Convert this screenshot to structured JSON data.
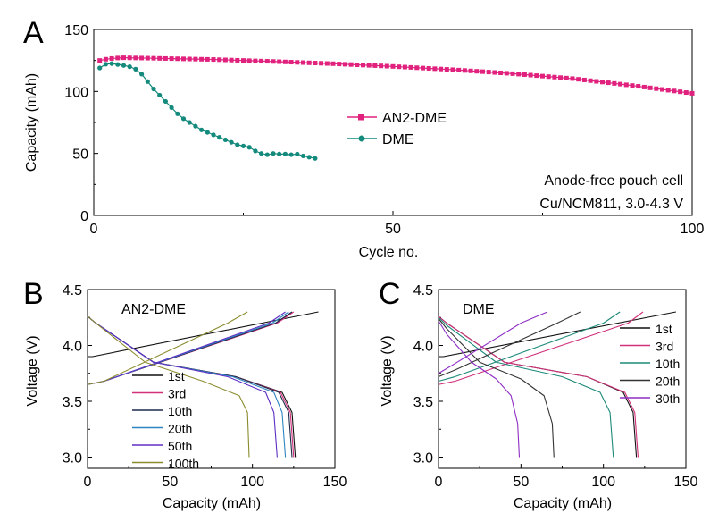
{
  "chart_data": [
    {
      "panel": "A",
      "type": "line",
      "xlabel": "Cycle no.",
      "ylabel": "Capacity (mAh)",
      "xlim": [
        0,
        100
      ],
      "ylim": [
        0,
        150
      ],
      "xticks": [
        "0",
        "50",
        "100"
      ],
      "yticks": [
        "0",
        "50",
        "100",
        "150"
      ],
      "annotations": [
        "Anode-free pouch cell",
        "Cu/NCM811, 3.0-4.3 V"
      ],
      "legend_position": "center",
      "series": [
        {
          "name": "AN2-DME",
          "color": "#e0217d",
          "marker": "square",
          "points": [
            [
              1,
              125.0
            ],
            [
              2,
              126.0
            ],
            [
              3,
              126.6
            ],
            [
              4,
              127.0
            ],
            [
              5,
              127.2
            ],
            [
              10,
              126.8
            ],
            [
              20,
              125.8
            ],
            [
              30,
              124.2
            ],
            [
              40,
              122.4
            ],
            [
              50,
              120.2
            ],
            [
              60,
              117.6
            ],
            [
              70,
              114.4
            ],
            [
              80,
              110.4
            ],
            [
              90,
              104.8
            ],
            [
              100,
              98.5
            ]
          ]
        },
        {
          "name": "DME",
          "color": "#148a7c",
          "marker": "circle",
          "points": [
            [
              1,
              119
            ],
            [
              2,
              122
            ],
            [
              3,
              122.5
            ],
            [
              4,
              121.8
            ],
            [
              5,
              121
            ],
            [
              6,
              120
            ],
            [
              7,
              118
            ],
            [
              8,
              114
            ],
            [
              9,
              108
            ],
            [
              10,
              102
            ],
            [
              11,
              97
            ],
            [
              12,
              92
            ],
            [
              13,
              87
            ],
            [
              14,
              82
            ],
            [
              15,
              78
            ],
            [
              16,
              75
            ],
            [
              17,
              72
            ],
            [
              18,
              69
            ],
            [
              19,
              67
            ],
            [
              20,
              65
            ],
            [
              21,
              63
            ],
            [
              22,
              61
            ],
            [
              23,
              59
            ],
            [
              24,
              57
            ],
            [
              25,
              56
            ],
            [
              26,
              55
            ],
            [
              27,
              52
            ],
            [
              28,
              50
            ],
            [
              29,
              49
            ],
            [
              30,
              50
            ],
            [
              31,
              49.5
            ],
            [
              32,
              49.5
            ],
            [
              33,
              49
            ],
            [
              34,
              49.5
            ],
            [
              35,
              48
            ],
            [
              36,
              47
            ],
            [
              37,
              46
            ]
          ]
        }
      ]
    },
    {
      "panel": "B",
      "type": "line",
      "title": "AN2-DME",
      "xlabel": "Capacity (mAh)",
      "ylabel": "Voltage (V)",
      "xlim": [
        0,
        150
      ],
      "ylim": [
        2.9,
        4.5
      ],
      "xticks": [
        "0",
        "50",
        "100",
        "150"
      ],
      "yticks": [
        "3.0",
        "3.5",
        "4.0",
        "4.5"
      ],
      "legend_position": "center",
      "series": [
        {
          "name": "1st",
          "color": "#111111",
          "charge": [
            [
              0,
              4.0
            ],
            [
              0.3,
              3.9
            ],
            [
              3,
              3.9
            ],
            [
              140,
              4.3
            ]
          ],
          "discharge": [
            [
              0,
              4.26
            ],
            [
              5,
              4.2
            ],
            [
              40,
              3.85
            ],
            [
              90,
              3.72
            ],
            [
              118,
              3.58
            ],
            [
              124,
              3.4
            ],
            [
              126,
              3.0
            ]
          ]
        },
        {
          "name": "3rd",
          "color": "#d1307a",
          "charge": [
            [
              0,
              3.65
            ],
            [
              10,
              3.68
            ],
            [
              115,
              4.2
            ],
            [
              125,
              4.3
            ]
          ],
          "discharge": [
            [
              0,
              4.26
            ],
            [
              5,
              4.2
            ],
            [
              40,
              3.85
            ],
            [
              90,
              3.72
            ],
            [
              117,
              3.58
            ],
            [
              123,
              3.4
            ],
            [
              125,
              3.0
            ]
          ]
        },
        {
          "name": "10th",
          "color": "#1c2a4a",
          "charge": [
            [
              0,
              3.65
            ],
            [
              10,
              3.68
            ],
            [
              114,
              4.2
            ],
            [
              124,
              4.3
            ]
          ],
          "discharge": [
            [
              0,
              4.26
            ],
            [
              5,
              4.2
            ],
            [
              40,
              3.85
            ],
            [
              90,
              3.72
            ],
            [
              116,
              3.58
            ],
            [
              122,
              3.4
            ],
            [
              124,
              3.0
            ]
          ]
        },
        {
          "name": "20th",
          "color": "#2e86c1",
          "charge": [
            [
              0,
              3.65
            ],
            [
              10,
              3.68
            ],
            [
              112,
              4.2
            ],
            [
              122,
              4.3
            ]
          ],
          "discharge": [
            [
              0,
              4.26
            ],
            [
              5,
              4.2
            ],
            [
              40,
              3.85
            ],
            [
              88,
              3.72
            ],
            [
              113,
              3.58
            ],
            [
              118,
              3.4
            ],
            [
              120,
              3.0
            ]
          ]
        },
        {
          "name": "50th",
          "color": "#5e2ec4",
          "charge": [
            [
              0,
              3.65
            ],
            [
              10,
              3.68
            ],
            [
              110,
              4.2
            ],
            [
              120,
              4.3
            ]
          ],
          "discharge": [
            [
              0,
              4.26
            ],
            [
              5,
              4.2
            ],
            [
              40,
              3.85
            ],
            [
              85,
              3.72
            ],
            [
              108,
              3.58
            ],
            [
              113,
              3.4
            ],
            [
              115,
              3.0
            ]
          ]
        },
        {
          "name": "100th",
          "color": "#8b8c2e",
          "charge": [
            [
              0,
              3.65
            ],
            [
              10,
              3.68
            ],
            [
              85,
              4.2
            ],
            [
              97,
              4.3
            ]
          ],
          "discharge": [
            [
              0,
              4.26
            ],
            [
              5,
              4.2
            ],
            [
              35,
              3.85
            ],
            [
              70,
              3.68
            ],
            [
              92,
              3.55
            ],
            [
              97,
              3.4
            ],
            [
              98,
              3.0
            ]
          ]
        }
      ]
    },
    {
      "panel": "C",
      "type": "line",
      "title": "DME",
      "xlabel": "Capacity (mAh)",
      "ylabel": "Voltage (V)",
      "xlim": [
        0,
        150
      ],
      "ylim": [
        2.9,
        4.5
      ],
      "xticks": [
        "0",
        "50",
        "100",
        "150"
      ],
      "yticks": [
        "3.0",
        "3.5",
        "4.0",
        "4.5"
      ],
      "legend_position": "right",
      "series": [
        {
          "name": "1st",
          "color": "#111111",
          "charge": [
            [
              0,
              4.0
            ],
            [
              0.3,
              3.9
            ],
            [
              3,
              3.9
            ],
            [
              144,
              4.3
            ]
          ],
          "discharge": [
            [
              0,
              4.26
            ],
            [
              5,
              4.2
            ],
            [
              40,
              3.85
            ],
            [
              90,
              3.72
            ],
            [
              112,
              3.58
            ],
            [
              118,
              3.4
            ],
            [
              120,
              3.0
            ]
          ]
        },
        {
          "name": "3rd",
          "color": "#d1307a",
          "charge": [
            [
              0,
              3.65
            ],
            [
              10,
              3.68
            ],
            [
              115,
              4.2
            ],
            [
              124,
              4.3
            ]
          ],
          "discharge": [
            [
              0,
              4.26
            ],
            [
              5,
              4.2
            ],
            [
              40,
              3.85
            ],
            [
              90,
              3.72
            ],
            [
              113,
              3.58
            ],
            [
              119,
              3.4
            ],
            [
              121,
              3.0
            ]
          ]
        },
        {
          "name": "10th",
          "color": "#1c8a7a",
          "charge": [
            [
              0,
              3.68
            ],
            [
              10,
              3.72
            ],
            [
              100,
              4.2
            ],
            [
              110,
              4.3
            ]
          ],
          "discharge": [
            [
              0,
              4.25
            ],
            [
              5,
              4.18
            ],
            [
              35,
              3.85
            ],
            [
              75,
              3.72
            ],
            [
              98,
              3.58
            ],
            [
              104,
              3.4
            ],
            [
              106,
              3.0
            ]
          ]
        },
        {
          "name": "20th",
          "color": "#333333",
          "charge": [
            [
              0,
              3.72
            ],
            [
              10,
              3.78
            ],
            [
              72,
              4.2
            ],
            [
              86,
              4.3
            ]
          ],
          "discharge": [
            [
              0,
              4.24
            ],
            [
              5,
              4.15
            ],
            [
              25,
              3.85
            ],
            [
              50,
              3.7
            ],
            [
              64,
              3.55
            ],
            [
              69,
              3.3
            ],
            [
              70,
              3.0
            ]
          ]
        },
        {
          "name": "30th",
          "color": "#8e2ec4",
          "charge": [
            [
              0,
              3.75
            ],
            [
              8,
              3.82
            ],
            [
              50,
              4.2
            ],
            [
              66,
              4.3
            ]
          ],
          "discharge": [
            [
              0,
              4.22
            ],
            [
              5,
              4.1
            ],
            [
              20,
              3.85
            ],
            [
              35,
              3.7
            ],
            [
              44,
              3.55
            ],
            [
              48,
              3.3
            ],
            [
              49,
              3.0
            ]
          ]
        }
      ]
    }
  ]
}
